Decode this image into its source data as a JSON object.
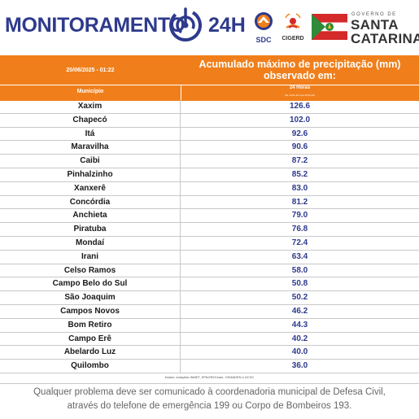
{
  "header": {
    "brand": "MONITORAMENTO",
    "brand_suffix": "24H",
    "sdc_label": "SDC",
    "cigerd_label": "CIGERD",
    "gov_small": "GOVERNO DE",
    "gov_line1": "SANTA",
    "gov_line2": "CATARINA"
  },
  "table_header": {
    "date": "20/06/2025 - 01:22",
    "title_line1": "Acumulado máximo de precipitação (mm)",
    "title_line2": "observado em:",
    "col_municipio": "Município",
    "col_24h": "24 Horas",
    "col_24h_sub": "(de 19.01.22 a de 20.01.22)"
  },
  "rows": [
    {
      "municipio": "Xaxim",
      "valor": "126.6"
    },
    {
      "municipio": "Chapecó",
      "valor": "102.0"
    },
    {
      "municipio": "Itá",
      "valor": "92.6"
    },
    {
      "municipio": "Maravilha",
      "valor": "90.6"
    },
    {
      "municipio": "Caibi",
      "valor": "87.2"
    },
    {
      "municipio": "Pinhalzinho",
      "valor": "85.2"
    },
    {
      "municipio": "Xanxerê",
      "valor": "83.0"
    },
    {
      "municipio": "Concórdia",
      "valor": "81.2"
    },
    {
      "municipio": "Anchieta",
      "valor": "79.0"
    },
    {
      "municipio": "Piratuba",
      "valor": "76.8"
    },
    {
      "municipio": "Mondaí",
      "valor": "72.4"
    },
    {
      "municipio": "Irani",
      "valor": "63.4"
    },
    {
      "municipio": "Celso Ramos",
      "valor": "58.0"
    },
    {
      "municipio": "Campo Belo do Sul",
      "valor": "50.8"
    },
    {
      "municipio": "São Joaquim",
      "valor": "50.2"
    },
    {
      "municipio": "Campos Novos",
      "valor": "46.2"
    },
    {
      "municipio": "Bom Retiro",
      "valor": "44.3"
    },
    {
      "municipio": "Campo Erê",
      "valor": "40.2"
    },
    {
      "municipio": "Abelardo Luz",
      "valor": "40.0"
    },
    {
      "municipio": "Quilombo",
      "valor": "36.0"
    }
  ],
  "source": "Dados: estações INMET, EPAGRI/Ciram, CEMADEN e DCSC",
  "footer": {
    "line1": "Qualquer problema deve ser comunicado à coordenadoria municipal de Defesa Civil,",
    "line2": "através do telefone de emergência 199 ou Corpo de Bombeiros 193."
  },
  "colors": {
    "orange": "#f07f1b",
    "navy": "#2e3a8c",
    "flag_red": "#d42a2a",
    "flag_green": "#2e8b3a"
  }
}
